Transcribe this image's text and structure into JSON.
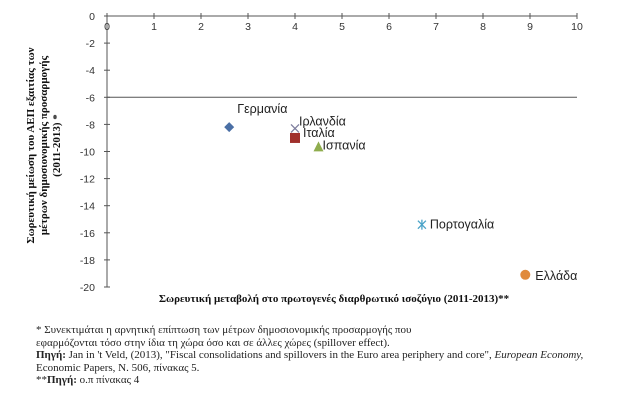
{
  "chart_data": {
    "type": "scatter",
    "ylabel_lines": [
      "Σωρευτική μείωση του ΑΕΠ εξαιτίας των",
      "μέτρων δημοσιονομικής προσαρμογής",
      "(2011-2013) *"
    ],
    "xlabel": "Σωρευτική μεταβολή στο πρωτογενές διαρθρωτικό ισοζύγιο (2011-2013)**",
    "xlim": [
      0,
      10
    ],
    "ylim": [
      -20,
      0
    ],
    "xticks": [
      "0",
      "1",
      "2",
      "3",
      "4",
      "5",
      "6",
      "7",
      "8",
      "9",
      "10"
    ],
    "yticks": [
      "0",
      "-2",
      "-4",
      "-6",
      "-8",
      "-10",
      "-12",
      "-14",
      "-16",
      "-18",
      "-20"
    ],
    "grid": false,
    "reference_line_y": -6,
    "points": [
      {
        "label": "Γερμανία",
        "x": 2.6,
        "y": -8.2,
        "marker": "diamond",
        "color": "#4a6fa5"
      },
      {
        "label": "Ιρλανδία",
        "x": 4.0,
        "y": -8.3,
        "marker": "x",
        "color": "#7f7f9f"
      },
      {
        "label": "Ιταλία",
        "x": 4.0,
        "y": -9.0,
        "marker": "square",
        "color": "#a0302c"
      },
      {
        "label": "Ισπανία",
        "x": 4.5,
        "y": -9.7,
        "marker": "triangle",
        "color": "#8fad4e"
      },
      {
        "label": "Πορτογαλία",
        "x": 6.7,
        "y": -15.4,
        "marker": "asterisk",
        "color": "#4aa3c8"
      },
      {
        "label": "Ελλάδα",
        "x": 8.9,
        "y": -19.1,
        "marker": "circle",
        "color": "#e08a3c"
      }
    ]
  },
  "notes": {
    "line1": "* Συνεκτιμάται η αρνητική επίπτωση των μέτρων δημοσιονομικής προσαρμογής που",
    "line2": "εφαρμόζονται τόσο στην ίδια τη χώρα όσο και σε άλλες  χώρες (spillover effect).",
    "source_label": "Πηγή:",
    "source_text": " Jan in 't Veld, (2013), \"Fiscal consolidations  and spillovers in the Euro area periphery and core\",",
    "source_journal": "European Economy,",
    "source_tail": " Economic Papers, N. 506, πίνακας 5.",
    "source2_prefix": "**",
    "source2_label": "Πηγή:",
    "source2_text": " ο.π πίνακας 4"
  }
}
